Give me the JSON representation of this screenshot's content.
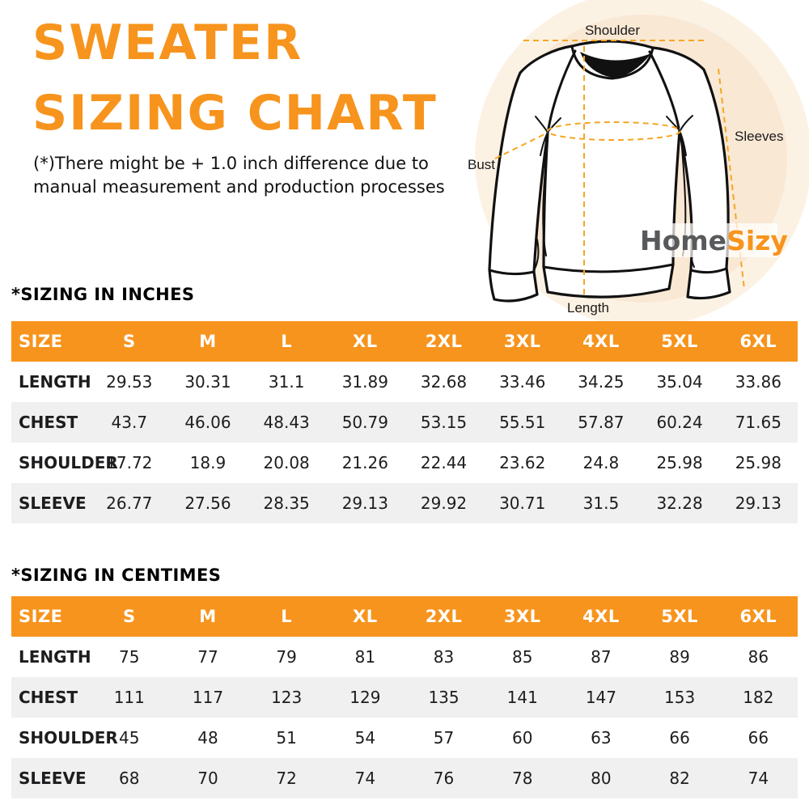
{
  "header": {
    "title_line1": "SWEATER",
    "title_line2": "SIZING CHART",
    "disclaimer": "(*)There might be + 1.0 inch difference due to manual measurement and production processes"
  },
  "diagram": {
    "shoulder_label": "Shoulder",
    "sleeves_label": "Sleeves",
    "bust_label": "Bust",
    "length_label": "Length",
    "logo_part1": "Home",
    "logo_part2": "Sizy"
  },
  "colors": {
    "accent_orange": "#F7941D",
    "dashed_line_orange": "#F5A623",
    "header_text_white": "#FFFFFF",
    "row_alt_gray": "#F0F0F0",
    "body_text_black": "#1D1D1F",
    "logo_gray": "#58595B",
    "circle_outer_peach": "#FCF2E4",
    "circle_inner_peach": "#F9E8D4"
  },
  "tables": [
    {
      "section_title": "*SIZING IN INCHES",
      "headers": [
        "SIZE",
        "S",
        "M",
        "L",
        "XL",
        "2XL",
        "3XL",
        "4XL",
        "5XL",
        "6XL"
      ],
      "rows": [
        {
          "label": "LENGTH",
          "values": [
            "29.53",
            "30.31",
            "31.1",
            "31.89",
            "32.68",
            "33.46",
            "34.25",
            "35.04",
            "33.86"
          ]
        },
        {
          "label": "CHEST",
          "values": [
            "43.7",
            "46.06",
            "48.43",
            "50.79",
            "53.15",
            "55.51",
            "57.87",
            "60.24",
            "71.65"
          ]
        },
        {
          "label": "SHOULDER",
          "values": [
            "17.72",
            "18.9",
            "20.08",
            "21.26",
            "22.44",
            "23.62",
            "24.8",
            "25.98",
            "25.98"
          ]
        },
        {
          "label": "SLEEVE",
          "values": [
            "26.77",
            "27.56",
            "28.35",
            "29.13",
            "29.92",
            "30.71",
            "31.5",
            "32.28",
            "29.13"
          ]
        }
      ]
    },
    {
      "section_title": "*SIZING IN CENTIMES",
      "headers": [
        "SIZE",
        "S",
        "M",
        "L",
        "XL",
        "2XL",
        "3XL",
        "4XL",
        "5XL",
        "6XL"
      ],
      "rows": [
        {
          "label": "LENGTH",
          "values": [
            "75",
            "77",
            "79",
            "81",
            "83",
            "85",
            "87",
            "89",
            "86"
          ]
        },
        {
          "label": "CHEST",
          "values": [
            "111",
            "117",
            "123",
            "129",
            "135",
            "141",
            "147",
            "153",
            "182"
          ]
        },
        {
          "label": "SHOULDER",
          "values": [
            "45",
            "48",
            "51",
            "54",
            "57",
            "60",
            "63",
            "66",
            "66"
          ]
        },
        {
          "label": "SLEEVE",
          "values": [
            "68",
            "70",
            "72",
            "74",
            "76",
            "78",
            "80",
            "82",
            "74"
          ]
        }
      ]
    }
  ]
}
